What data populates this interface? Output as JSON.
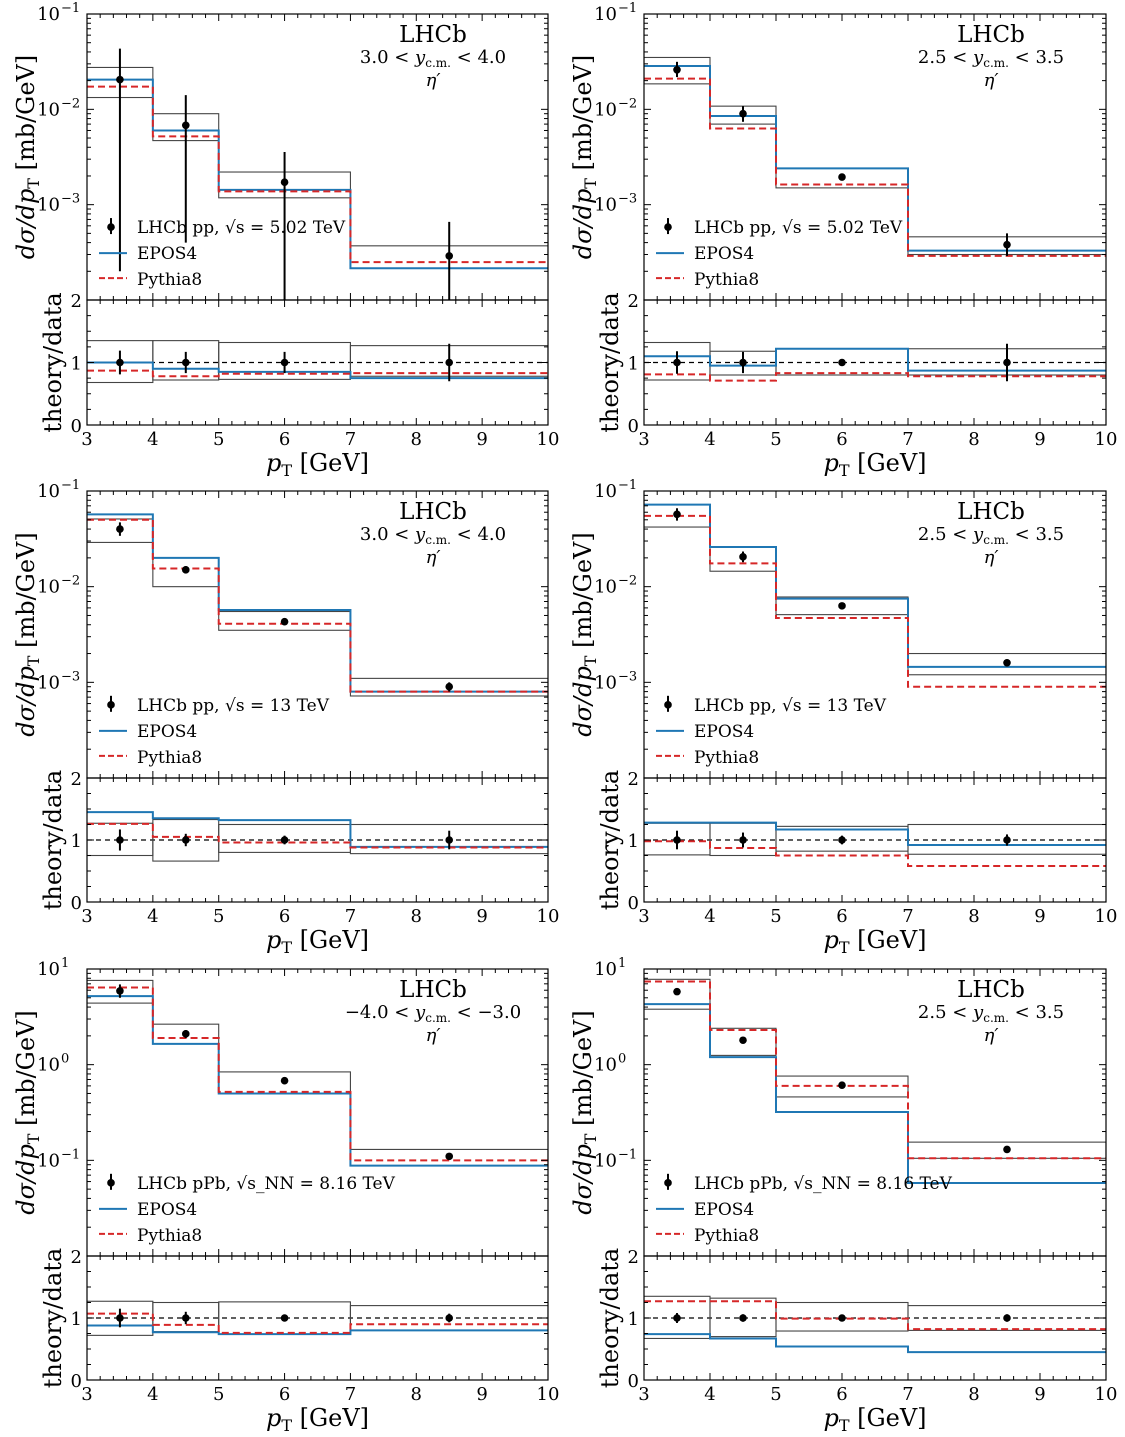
{
  "chart_data": [
    {
      "type": "line",
      "experiment": "LHCb",
      "rapidity": "3.0 < y_c.m. < 4.0",
      "particle": "η′",
      "legend": {
        "data": "LHCb pp, √s = 5.02 TeV",
        "epos": "EPOS4",
        "pythia": "Pythia8"
      },
      "ylabel": "dσ/dp_T [mb/GeV]",
      "ratio_ylabel": "theory/data",
      "xlabel": "p_T [GeV]",
      "yscale": "log",
      "ylim": [
        0.0001,
        0.1
      ],
      "ytick_exp": [
        -3,
        -2,
        -1
      ],
      "ratio_ylim": [
        0,
        2
      ],
      "ratio_ticks": [
        "0",
        "1",
        "2"
      ],
      "xlim": [
        3,
        10
      ],
      "xticks": [
        3,
        4,
        5,
        6,
        7,
        8,
        9,
        10
      ],
      "bins": [
        3,
        4,
        5,
        7,
        10
      ],
      "data": {
        "x": [
          3.5,
          4.5,
          6,
          8.5
        ],
        "y": [
          0.0205,
          0.0068,
          0.00172,
          0.00029
        ],
        "yerr_lo": [
          0.0203,
          0.0064,
          0.00165,
          0.00023
        ],
        "yerr_hi": [
          0.0228,
          0.0073,
          0.00185,
          0.00037
        ]
      },
      "syst_band": {
        "lo": [
          0.0133,
          0.0047,
          0.00118,
          0.000215
        ],
        "hi": [
          0.0275,
          0.009,
          0.0022,
          0.00037
        ]
      },
      "epos4": [
        0.0205,
        0.006,
        0.00143,
        0.000215
      ],
      "pythia8": [
        0.0173,
        0.0052,
        0.00138,
        0.00025
      ],
      "ratio": {
        "data_err": [
          0.19,
          0.17,
          0.17,
          0.3
        ],
        "band_lo": [
          0.68,
          0.72,
          0.73,
          0.78
        ],
        "band_hi": [
          1.35,
          1.35,
          1.32,
          1.27
        ],
        "epos4": [
          1.0,
          0.9,
          0.85,
          0.75
        ],
        "pythia8": [
          0.87,
          0.78,
          0.82,
          0.83
        ]
      }
    },
    {
      "type": "line",
      "experiment": "LHCb",
      "rapidity": "2.5 < y_c.m. < 3.5",
      "particle": "η′",
      "legend": {
        "data": "LHCb pp, √s = 5.02 TeV",
        "epos": "EPOS4",
        "pythia": "Pythia8"
      },
      "ylabel": "dσ/dp_T [mb/GeV]",
      "ratio_ylabel": "theory/data",
      "xlabel": "p_T [GeV]",
      "yscale": "log",
      "ylim": [
        0.0001,
        0.1
      ],
      "ytick_exp": [
        -3,
        -2,
        -1
      ],
      "ratio_ylim": [
        0,
        2
      ],
      "ratio_ticks": [
        "0",
        "1",
        "2"
      ],
      "xlim": [
        3,
        10
      ],
      "xticks": [
        3,
        4,
        5,
        6,
        7,
        8,
        9,
        10
      ],
      "bins": [
        3,
        4,
        5,
        7,
        10
      ],
      "data": {
        "x": [
          3.5,
          4.5,
          6,
          8.5
        ],
        "y": [
          0.026,
          0.009,
          0.00195,
          0.00038
        ],
        "yerr_lo": [
          0.0042,
          0.0016,
          0.0001,
          9e-05
        ],
        "yerr_hi": [
          0.0055,
          0.0018,
          0.0001,
          0.00012
        ]
      },
      "syst_band": {
        "lo": [
          0.0185,
          0.007,
          0.0015,
          0.0003
        ],
        "hi": [
          0.035,
          0.0108,
          0.0024,
          0.00046
        ]
      },
      "epos4": [
        0.0285,
        0.0085,
        0.0024,
        0.00033
      ],
      "pythia8": [
        0.021,
        0.0063,
        0.00163,
        0.00029
      ],
      "ratio": {
        "data_err": [
          0.18,
          0.17,
          0.02,
          0.3
        ],
        "band_lo": [
          0.72,
          0.8,
          0.8,
          0.8
        ],
        "band_hi": [
          1.32,
          1.18,
          1.22,
          1.22
        ],
        "epos4": [
          1.1,
          0.95,
          1.22,
          0.87
        ],
        "pythia8": [
          0.81,
          0.71,
          0.83,
          0.78
        ]
      }
    },
    {
      "type": "line",
      "experiment": "LHCb",
      "rapidity": "3.0 < y_c.m. < 4.0",
      "particle": "η′",
      "legend": {
        "data": "LHCb pp, √s = 13 TeV",
        "epos": "EPOS4",
        "pythia": "Pythia8"
      },
      "ylabel": "dσ/dp_T [mb/GeV]",
      "ratio_ylabel": "theory/data",
      "xlabel": "p_T [GeV]",
      "yscale": "log",
      "ylim": [
        0.0001,
        0.1
      ],
      "ytick_exp": [
        -3,
        -2,
        -1
      ],
      "ratio_ylim": [
        0,
        2
      ],
      "ratio_ticks": [
        "0",
        "1",
        "2"
      ],
      "xlim": [
        3,
        10
      ],
      "xticks": [
        3,
        4,
        5,
        6,
        7,
        8,
        9,
        10
      ],
      "bins": [
        3,
        4,
        5,
        7,
        10
      ],
      "data": {
        "x": [
          3.5,
          4.5,
          6,
          8.5
        ],
        "y": [
          0.04,
          0.015,
          0.0043,
          0.0009
        ],
        "yerr_lo": [
          0.006,
          0.0012,
          0.0002,
          0.0001
        ],
        "yerr_hi": [
          0.007,
          0.0014,
          0.0002,
          0.0001
        ]
      },
      "syst_band": {
        "lo": [
          0.029,
          0.01,
          0.0035,
          0.00072
        ],
        "hi": [
          0.051,
          0.02,
          0.0055,
          0.0011
        ]
      },
      "epos4": [
        0.057,
        0.02,
        0.0057,
        0.0008
      ],
      "pythia8": [
        0.05,
        0.0155,
        0.0041,
        0.0008
      ],
      "ratio": {
        "data_err": [
          0.17,
          0.1,
          0.07,
          0.15
        ],
        "band_lo": [
          0.75,
          0.66,
          0.8,
          0.78
        ],
        "band_hi": [
          1.27,
          1.33,
          1.25,
          1.25
        ],
        "epos4": [
          1.45,
          1.35,
          1.32,
          0.89
        ],
        "pythia8": [
          1.26,
          1.05,
          0.96,
          0.88
        ]
      }
    },
    {
      "type": "line",
      "experiment": "LHCb",
      "rapidity": "2.5 < y_c.m. < 3.5",
      "particle": "η′",
      "legend": {
        "data": "LHCb pp, √s = 13 TeV",
        "epos": "EPOS4",
        "pythia": "Pythia8"
      },
      "ylabel": "dσ/dp_T [mb/GeV]",
      "ratio_ylabel": "theory/data",
      "xlabel": "p_T [GeV]",
      "yscale": "log",
      "ylim": [
        0.0001,
        0.1
      ],
      "ytick_exp": [
        -3,
        -2,
        -1
      ],
      "ratio_ylim": [
        0,
        2
      ],
      "ratio_ticks": [
        "0",
        "1",
        "2"
      ],
      "xlim": [
        3,
        10
      ],
      "xticks": [
        3,
        4,
        5,
        6,
        7,
        8,
        9,
        10
      ],
      "bins": [
        3,
        4,
        5,
        7,
        10
      ],
      "data": {
        "x": [
          3.5,
          4.5,
          6,
          8.5
        ],
        "y": [
          0.057,
          0.0205,
          0.0063,
          0.0016
        ],
        "yerr_lo": [
          0.008,
          0.0025,
          0.0003,
          0.00012
        ],
        "yerr_hi": [
          0.009,
          0.0028,
          0.0003,
          0.00014
        ]
      },
      "syst_band": {
        "lo": [
          0.042,
          0.0145,
          0.0051,
          0.0012
        ],
        "hi": [
          0.072,
          0.026,
          0.0078,
          0.002
        ]
      },
      "epos4": [
        0.072,
        0.026,
        0.0075,
        0.00145
      ],
      "pythia8": [
        0.055,
        0.0175,
        0.0047,
        0.0009
      ],
      "ratio": {
        "data_err": [
          0.15,
          0.12,
          0.07,
          0.09
        ],
        "band_lo": [
          0.76,
          0.75,
          0.82,
          0.77
        ],
        "band_hi": [
          1.27,
          1.27,
          1.22,
          1.25
        ],
        "epos4": [
          1.28,
          1.28,
          1.17,
          0.92
        ],
        "pythia8": [
          0.98,
          0.87,
          0.75,
          0.58
        ]
      }
    },
    {
      "type": "line",
      "experiment": "LHCb",
      "rapidity": "−4.0 < y_c.m. < −3.0",
      "particle": "η′",
      "legend": {
        "data": "LHCb pPb, √s_NN = 8.16 TeV",
        "epos": "EPOS4",
        "pythia": "Pythia8"
      },
      "ylabel": "dσ/dp_T [mb/GeV]",
      "ratio_ylabel": "theory/data",
      "xlabel": "p_T [GeV]",
      "yscale": "log",
      "ylim": [
        0.01,
        10
      ],
      "ytick_exp": [
        -1,
        0,
        1
      ],
      "ratio_ylim": [
        0,
        2
      ],
      "ratio_ticks": [
        "0",
        "1",
        "2"
      ],
      "xlim": [
        3,
        10
      ],
      "xticks": [
        3,
        4,
        5,
        6,
        7,
        8,
        9,
        10
      ],
      "bins": [
        3,
        4,
        5,
        7,
        10
      ],
      "data": {
        "x": [
          3.5,
          4.5,
          6,
          8.5
        ],
        "y": [
          5.9,
          2.1,
          0.68,
          0.11
        ],
        "yerr_lo": [
          0.9,
          0.2,
          0.03,
          0.008
        ],
        "yerr_hi": [
          1.0,
          0.2,
          0.03,
          0.008
        ]
      },
      "syst_band": {
        "lo": [
          4.4,
          1.65,
          0.5,
          0.088
        ],
        "hi": [
          7.6,
          2.65,
          0.84,
          0.13
        ]
      },
      "epos4": [
        5.2,
        1.65,
        0.5,
        0.088
      ],
      "pythia8": [
        6.4,
        1.9,
        0.52,
        0.1
      ],
      "ratio": {
        "data_err": [
          0.15,
          0.1,
          0.04,
          0.07
        ],
        "band_lo": [
          0.72,
          0.78,
          0.74,
          0.8
        ],
        "band_hi": [
          1.27,
          1.25,
          1.26,
          1.2
        ],
        "epos4": [
          0.88,
          0.77,
          0.74,
          0.8
        ],
        "pythia8": [
          1.07,
          0.89,
          0.76,
          0.9
        ]
      }
    },
    {
      "type": "line",
      "experiment": "LHCb",
      "rapidity": "2.5 < y_c.m. < 3.5",
      "particle": "η′",
      "legend": {
        "data": "LHCb pPb, √s_NN = 8.16 TeV",
        "epos": "EPOS4",
        "pythia": "Pythia8"
      },
      "ylabel": "dσ/dp_T [mb/GeV]",
      "ratio_ylabel": "theory/data",
      "xlabel": "p_T [GeV]",
      "yscale": "log",
      "ylim": [
        0.01,
        10
      ],
      "ytick_exp": [
        -1,
        0,
        1
      ],
      "ratio_ylim": [
        0,
        2
      ],
      "ratio_ticks": [
        "0",
        "1",
        "2"
      ],
      "xlim": [
        3,
        10
      ],
      "xticks": [
        3,
        4,
        5,
        6,
        7,
        8,
        9,
        10
      ],
      "bins": [
        3,
        4,
        5,
        7,
        10
      ],
      "data": {
        "x": [
          3.5,
          4.5,
          6,
          8.5
        ],
        "y": [
          5.8,
          1.8,
          0.61,
          0.13
        ],
        "yerr_lo": [
          0.3,
          0.1,
          0.02,
          0.005
        ],
        "yerr_hi": [
          0.3,
          0.1,
          0.02,
          0.005
        ]
      },
      "syst_band": {
        "lo": [
          3.8,
          1.25,
          0.46,
          0.105
        ],
        "hi": [
          7.8,
          2.4,
          0.76,
          0.155
        ]
      },
      "epos4": [
        4.3,
        1.2,
        0.32,
        0.058
      ],
      "pythia8": [
        7.4,
        2.3,
        0.6,
        0.105
      ],
      "ratio": {
        "data_err": [
          0.08,
          0.06,
          0.03,
          0.06
        ],
        "band_lo": [
          0.67,
          0.7,
          0.79,
          0.8
        ],
        "band_hi": [
          1.35,
          1.32,
          1.25,
          1.2
        ],
        "epos4": [
          0.74,
          0.67,
          0.54,
          0.45
        ],
        "pythia8": [
          1.27,
          1.27,
          0.99,
          0.82
        ]
      }
    }
  ]
}
